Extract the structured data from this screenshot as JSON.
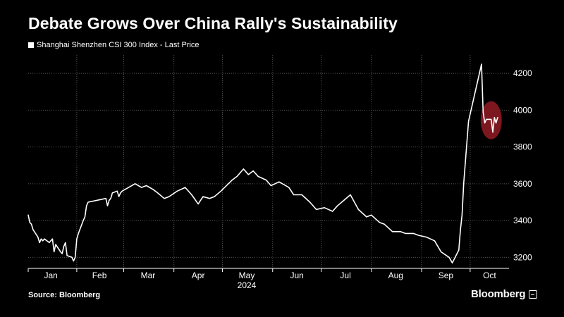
{
  "title": "Debate Grows Over China Rally's Sustainability",
  "legend_label": "Shanghai Shenzhen CSI 300 Index - Last Price",
  "source": "Source: Bloomberg",
  "brand": "Bloomberg",
  "colors": {
    "background": "#000000",
    "line": "#ffffff",
    "highlight": "#8b1a22",
    "grid": "#555555"
  },
  "chart_data": {
    "type": "line",
    "title": "Debate Grows Over China Rally's Sustainability",
    "series": [
      {
        "name": "Shanghai Shenzhen CSI 300 Index - Last Price",
        "x": [
          "2024-01-02",
          "2024-01-03",
          "2024-01-04",
          "2024-01-05",
          "2024-01-08",
          "2024-01-09",
          "2024-01-10",
          "2024-01-11",
          "2024-01-12",
          "2024-01-15",
          "2024-01-16",
          "2024-01-17",
          "2024-01-18",
          "2024-01-19",
          "2024-01-22",
          "2024-01-23",
          "2024-01-24",
          "2024-01-25",
          "2024-01-26",
          "2024-01-29",
          "2024-01-30",
          "2024-01-31",
          "2024-02-01",
          "2024-02-02",
          "2024-02-05",
          "2024-02-06",
          "2024-02-07",
          "2024-02-08",
          "2024-02-19",
          "2024-02-20",
          "2024-02-21",
          "2024-02-22",
          "2024-02-23",
          "2024-02-26",
          "2024-02-27",
          "2024-02-28",
          "2024-02-29",
          "2024-03-04",
          "2024-03-08",
          "2024-03-12",
          "2024-03-15",
          "2024-03-19",
          "2024-03-22",
          "2024-03-26",
          "2024-03-29",
          "2024-04-03",
          "2024-04-08",
          "2024-04-12",
          "2024-04-16",
          "2024-04-19",
          "2024-04-23",
          "2024-04-26",
          "2024-04-30",
          "2024-05-07",
          "2024-05-10",
          "2024-05-14",
          "2024-05-17",
          "2024-05-20",
          "2024-05-23",
          "2024-05-28",
          "2024-05-31",
          "2024-06-05",
          "2024-06-11",
          "2024-06-14",
          "2024-06-19",
          "2024-06-24",
          "2024-06-28",
          "2024-07-03",
          "2024-07-08",
          "2024-07-11",
          "2024-07-15",
          "2024-07-19",
          "2024-07-24",
          "2024-07-29",
          "2024-08-01",
          "2024-08-06",
          "2024-08-09",
          "2024-08-14",
          "2024-08-19",
          "2024-08-22",
          "2024-08-27",
          "2024-08-30",
          "2024-09-04",
          "2024-09-09",
          "2024-09-13",
          "2024-09-18",
          "2024-09-20",
          "2024-09-24",
          "2024-09-25",
          "2024-09-26",
          "2024-09-27",
          "2024-09-30",
          "2024-10-08",
          "2024-10-09",
          "2024-10-10",
          "2024-10-11",
          "2024-10-14",
          "2024-10-15",
          "2024-10-16",
          "2024-10-17",
          "2024-10-18"
        ],
        "values": [
          3430,
          3390,
          3380,
          3350,
          3310,
          3280,
          3300,
          3290,
          3300,
          3280,
          3290,
          3300,
          3230,
          3270,
          3230,
          3220,
          3260,
          3280,
          3210,
          3200,
          3180,
          3200,
          3300,
          3330,
          3400,
          3420,
          3480,
          3500,
          3520,
          3480,
          3510,
          3520,
          3550,
          3560,
          3530,
          3550,
          3560,
          3580,
          3600,
          3580,
          3590,
          3570,
          3550,
          3520,
          3530,
          3560,
          3580,
          3540,
          3490,
          3530,
          3520,
          3530,
          3560,
          3620,
          3640,
          3680,
          3650,
          3670,
          3640,
          3620,
          3590,
          3610,
          3580,
          3540,
          3540,
          3500,
          3460,
          3470,
          3450,
          3480,
          3510,
          3540,
          3460,
          3420,
          3430,
          3390,
          3380,
          3340,
          3340,
          3330,
          3330,
          3320,
          3310,
          3290,
          3230,
          3200,
          3170,
          3240,
          3350,
          3430,
          3600,
          3940,
          4250,
          3990,
          3930,
          3950,
          3950,
          3880,
          3960,
          3930,
          3960
        ]
      }
    ],
    "xlabel": "2024",
    "ylabel": "",
    "xtick_labels": [
      "Jan",
      "Feb",
      "Mar",
      "Apr",
      "May",
      "Jun",
      "Jul",
      "Aug",
      "Sep",
      "Oct"
    ],
    "yticks": [
      3200,
      3400,
      3600,
      3800,
      4000,
      4200
    ],
    "ylim": [
      3140,
      4300
    ],
    "xlim": [
      "2024-01-02",
      "2024-10-25"
    ],
    "grid": true,
    "y_axis_side": "right",
    "legend_position": "top-left",
    "annotation": "highlight circle around October values near 4000"
  }
}
